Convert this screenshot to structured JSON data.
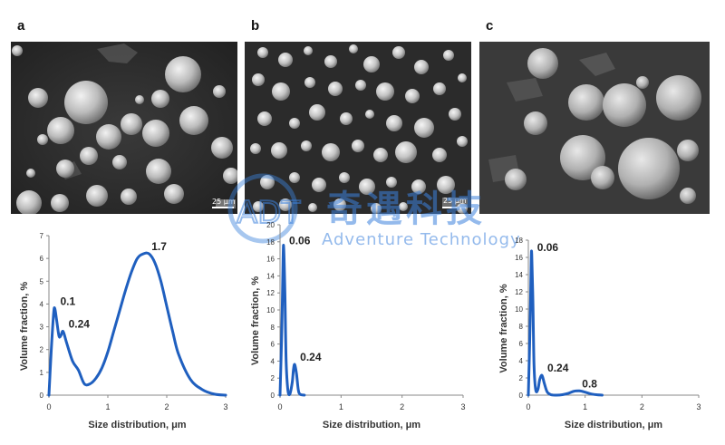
{
  "panels": [
    {
      "letter": "a",
      "scale_text": "25 μm"
    },
    {
      "letter": "b",
      "scale_text": "25 μm"
    },
    {
      "letter": "c",
      "scale_text": ""
    }
  ],
  "watermark": {
    "cn": "奇遇科技",
    "en": "Adventure Technology",
    "logo": "ADT"
  },
  "chart_data": [
    {
      "type": "line",
      "panel": "a",
      "xlabel": "Size distribution, μm",
      "ylabel": "Volume fraction, %",
      "xlim": [
        0,
        3
      ],
      "ylim": [
        0,
        7
      ],
      "xticks": [
        0,
        1,
        2,
        3
      ],
      "yticks": [
        0,
        1,
        2,
        3,
        4,
        5,
        6,
        7
      ],
      "grid": false,
      "color": "#1f5fbf",
      "x": [
        0.0,
        0.04,
        0.08,
        0.1,
        0.13,
        0.17,
        0.2,
        0.24,
        0.3,
        0.4,
        0.5,
        0.6,
        0.7,
        0.8,
        0.9,
        1.0,
        1.1,
        1.2,
        1.3,
        1.4,
        1.5,
        1.6,
        1.7,
        1.8,
        1.9,
        2.0,
        2.1,
        2.2,
        2.4,
        2.6,
        2.8,
        3.0
      ],
      "y": [
        0.0,
        2.0,
        3.6,
        3.8,
        3.3,
        2.6,
        2.6,
        2.8,
        2.3,
        1.5,
        1.1,
        0.5,
        0.5,
        0.75,
        1.2,
        1.9,
        2.8,
        3.7,
        4.6,
        5.4,
        6.0,
        6.2,
        6.2,
        5.8,
        5.0,
        3.9,
        2.8,
        1.8,
        0.7,
        0.25,
        0.05,
        0.0
      ],
      "annotations": [
        {
          "text": "0.1",
          "x": 0.1,
          "y": 3.8
        },
        {
          "text": "0.24",
          "x": 0.24,
          "y": 2.8
        },
        {
          "text": "1.7",
          "x": 1.65,
          "y": 6.2
        }
      ]
    },
    {
      "type": "line",
      "panel": "b",
      "xlabel": "Size distribution, μm",
      "ylabel": "Volume fraction, %",
      "xlim": [
        0,
        3
      ],
      "ylim": [
        0,
        20
      ],
      "xticks": [
        0,
        1,
        2,
        3
      ],
      "yticks": [
        0,
        2,
        4,
        6,
        8,
        10,
        12,
        14,
        16,
        18,
        20
      ],
      "grid": false,
      "color": "#1f5fbf",
      "x": [
        0.0,
        0.03,
        0.05,
        0.06,
        0.08,
        0.1,
        0.13,
        0.16,
        0.2,
        0.22,
        0.24,
        0.27,
        0.3,
        0.33,
        0.4
      ],
      "y": [
        0.0,
        8.0,
        16.0,
        17.3,
        12.0,
        4.0,
        0.5,
        0.1,
        1.5,
        3.0,
        3.6,
        2.5,
        0.6,
        0.1,
        0.0
      ],
      "annotations": [
        {
          "text": "0.06",
          "x": 0.06,
          "y": 17.3
        },
        {
          "text": "0.24",
          "x": 0.24,
          "y": 3.6
        }
      ]
    },
    {
      "type": "line",
      "panel": "c",
      "xlabel": "Size distribution, μm",
      "ylabel": "Volume fraction, %",
      "xlim": [
        0,
        3
      ],
      "ylim": [
        0,
        18
      ],
      "xticks": [
        0,
        1,
        2,
        3
      ],
      "yticks": [
        0,
        2,
        4,
        6,
        8,
        10,
        12,
        14,
        16,
        18
      ],
      "grid": false,
      "color": "#1f5fbf",
      "x": [
        0.0,
        0.03,
        0.05,
        0.06,
        0.08,
        0.1,
        0.13,
        0.17,
        0.2,
        0.24,
        0.28,
        0.33,
        0.4,
        0.5,
        0.6,
        0.7,
        0.8,
        0.9,
        1.0,
        1.1,
        1.2,
        1.3
      ],
      "y": [
        0.0,
        8.0,
        15.5,
        16.3,
        11.0,
        3.5,
        0.6,
        0.7,
        1.8,
        2.3,
        1.4,
        0.4,
        0.05,
        0.0,
        0.05,
        0.2,
        0.45,
        0.5,
        0.35,
        0.15,
        0.05,
        0.0
      ],
      "annotations": [
        {
          "text": "0.06",
          "x": 0.06,
          "y": 16.3
        },
        {
          "text": "0.24",
          "x": 0.24,
          "y": 2.3
        },
        {
          "text": "0.8",
          "x": 0.85,
          "y": 0.5
        }
      ]
    }
  ]
}
